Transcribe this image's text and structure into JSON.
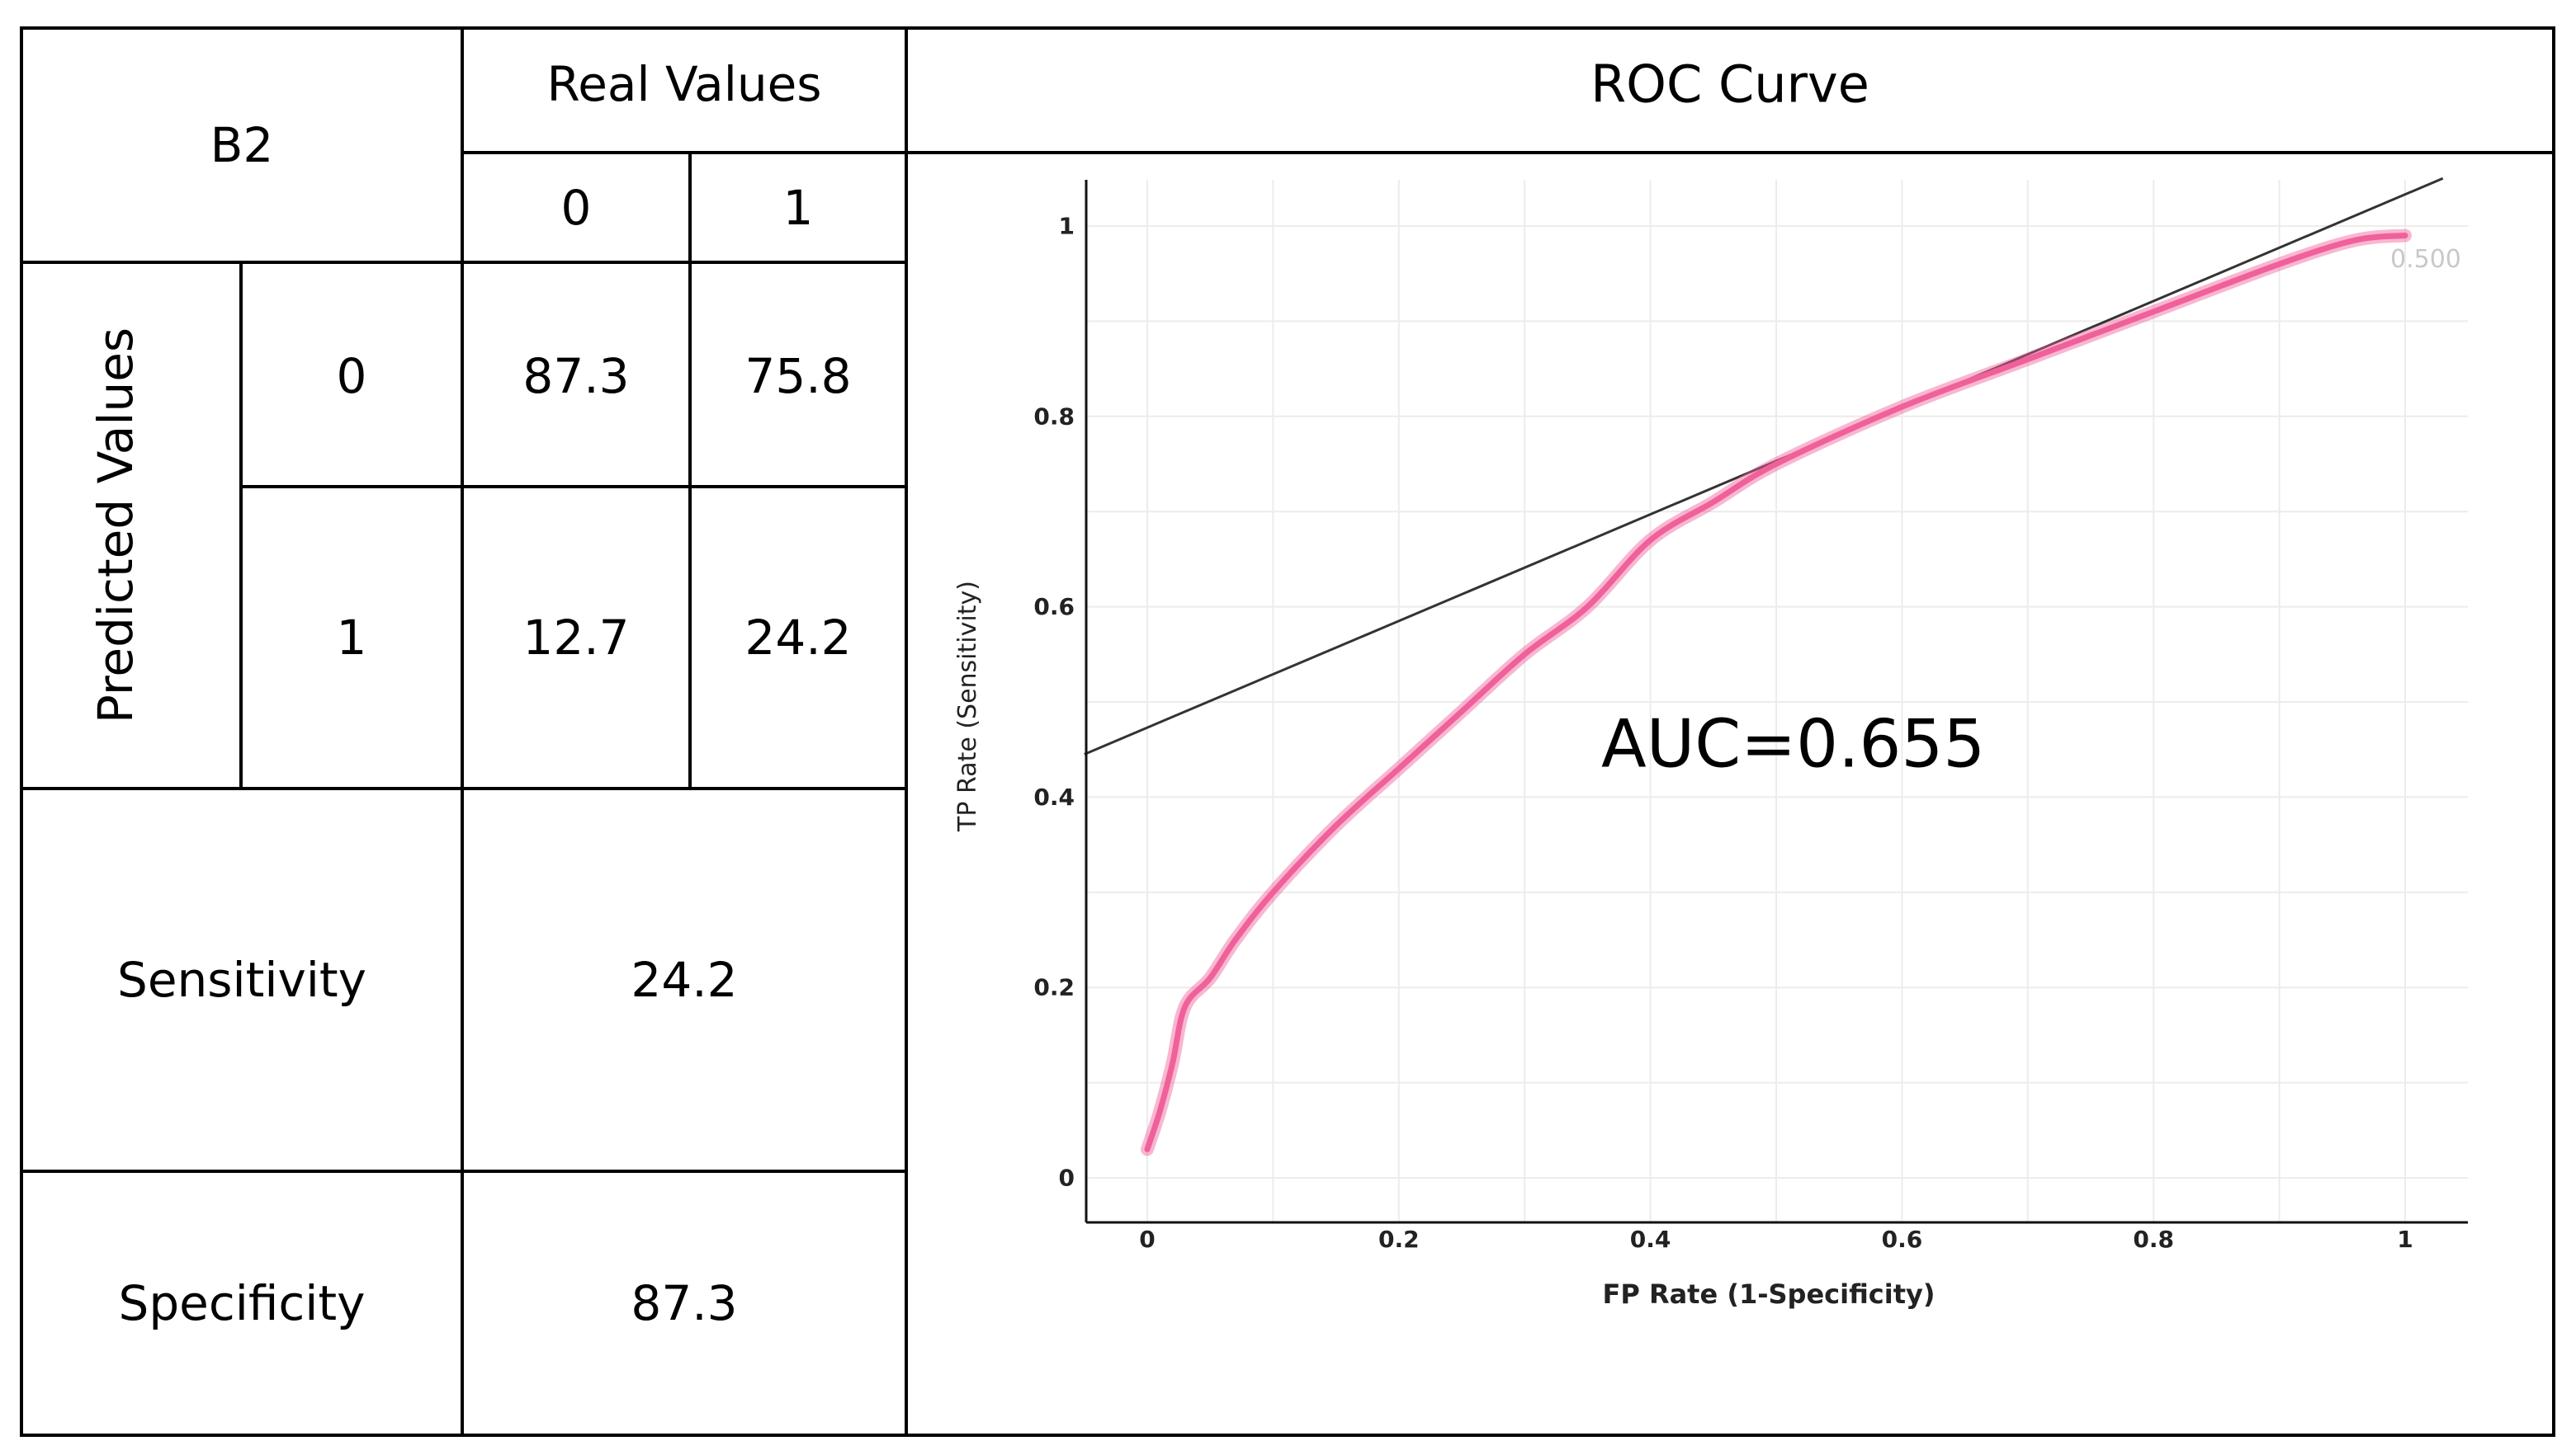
{
  "confusion_table": {
    "model_label": "B2",
    "real_values_header": "Real Values",
    "predicted_values_header": "Predicted Values",
    "class_labels": [
      "0",
      "1"
    ],
    "matrix": [
      [
        "87.3",
        "75.8"
      ],
      [
        "12.7",
        "24.2"
      ]
    ],
    "sensitivity_label": "Sensitivity",
    "sensitivity_value": "24.2",
    "specificity_label": "Specificity",
    "specificity_value": "87.3"
  },
  "colors": {
    "grid_border": "#000000",
    "curve": "#f0609a",
    "diagonal": "#333333",
    "gridline": "#ececec",
    "axis": "#111111",
    "threshold_label": "#c8c8c8"
  },
  "chart_data": {
    "type": "line",
    "title": "ROC Curve",
    "xlabel": "FP Rate (1-Specificity)",
    "ylabel": "TP Rate (Sensitivity)",
    "xlim": [
      -0.05,
      1.05
    ],
    "ylim": [
      -0.05,
      1.05
    ],
    "x_ticks": [
      0,
      0.2,
      0.4,
      0.6,
      0.8,
      1
    ],
    "x_tick_labels": [
      "0",
      "0.2",
      "0.4",
      "0.6",
      "0.8",
      "1"
    ],
    "y_ticks": [
      0,
      0.2,
      0.4,
      0.6,
      0.8,
      1
    ],
    "y_tick_labels": [
      "0",
      "0.2",
      "0.4",
      "0.6",
      "0.8",
      "1"
    ],
    "grid": true,
    "annotation": "AUC=0.655",
    "threshold_label": "0.500",
    "series": [
      {
        "name": "ROC",
        "x": [
          0,
          0.01,
          0.02,
          0.03,
          0.05,
          0.07,
          0.1,
          0.15,
          0.2,
          0.25,
          0.3,
          0.35,
          0.4,
          0.45,
          0.5,
          0.6,
          0.7,
          0.8,
          0.9,
          0.96,
          1.0
        ],
        "y": [
          0.03,
          0.07,
          0.12,
          0.18,
          0.21,
          0.25,
          0.3,
          0.37,
          0.43,
          0.49,
          0.55,
          0.6,
          0.67,
          0.71,
          0.75,
          0.81,
          0.86,
          0.91,
          0.96,
          0.985,
          0.99
        ]
      },
      {
        "name": "reference",
        "x": [
          -0.05,
          1.03
        ],
        "y": [
          0.445,
          1.05
        ]
      }
    ]
  }
}
